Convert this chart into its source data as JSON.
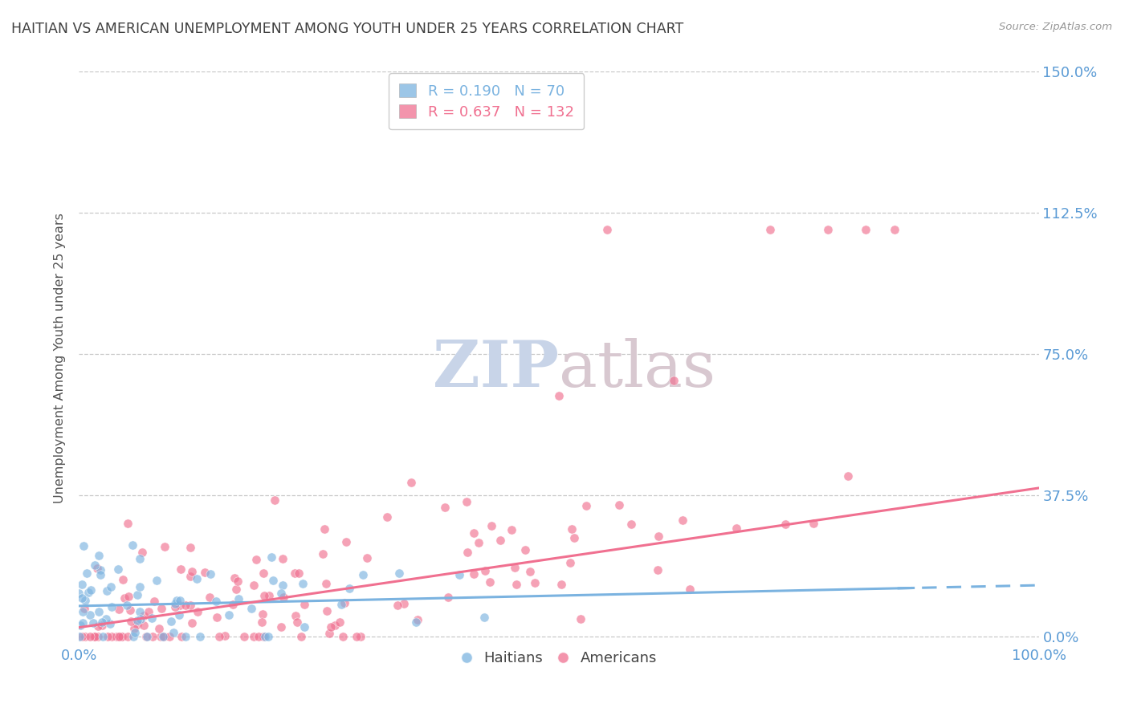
{
  "title": "HAITIAN VS AMERICAN UNEMPLOYMENT AMONG YOUTH UNDER 25 YEARS CORRELATION CHART",
  "source": "Source: ZipAtlas.com",
  "ylabel": "Unemployment Among Youth under 25 years",
  "xlim": [
    0,
    1.0
  ],
  "ylim": [
    -0.02,
    1.5
  ],
  "ytick_vals": [
    0.0,
    0.375,
    0.75,
    1.125,
    1.5
  ],
  "ytick_labels": [
    "0.0%",
    "37.5%",
    "75.0%",
    "112.5%",
    "150.0%"
  ],
  "blue_color": "#7bb3e0",
  "pink_color": "#f07090",
  "blue_R": 0.19,
  "blue_N": 70,
  "pink_R": 0.637,
  "pink_N": 132,
  "watermark_zip": "ZIP",
  "watermark_atlas": "atlas",
  "title_color": "#404040",
  "axis_tick_color": "#5b9bd5",
  "grid_color": "#c8c8c8",
  "blue_trend_slope": 0.055,
  "blue_trend_intercept": 0.082,
  "pink_trend_slope": 0.37,
  "pink_trend_intercept": 0.025,
  "haitians_label": "Haitians",
  "americans_label": "Americans"
}
